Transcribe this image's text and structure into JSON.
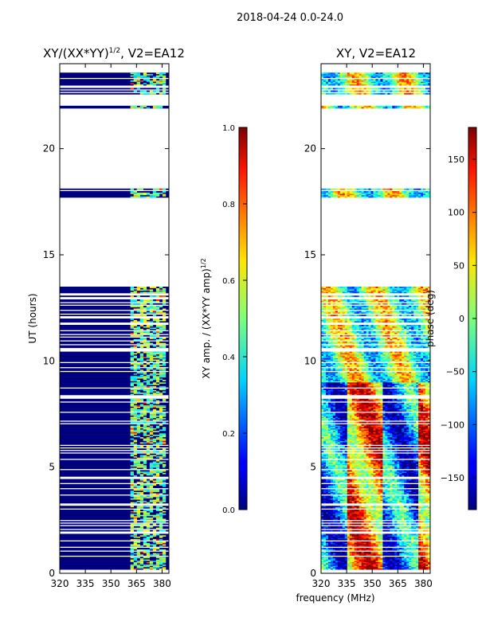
{
  "suptitle": "2018-04-24 0.0-24.0",
  "chart_data": [
    {
      "type": "heatmap",
      "title_main": "XY/(XX*YY)",
      "title_sup": "1/2",
      "title_tail": ", V2=EA12",
      "ylabel": "UT (hours)",
      "xlabel": "",
      "xlim": [
        320,
        384
      ],
      "ylim": [
        0,
        24
      ],
      "xticks": [
        320,
        335,
        350,
        365,
        380
      ],
      "yticks": [
        0,
        5,
        10,
        15,
        20
      ],
      "colorbar": {
        "label": "XY amp. / (XX*YY amp)",
        "label_sup": "1/2",
        "range": [
          0.0,
          1.0
        ],
        "ticks": [
          "0.0",
          "0.2",
          "0.4",
          "0.6",
          "0.8",
          "1.0"
        ],
        "tick_values": [
          0.0,
          0.2,
          0.4,
          0.6,
          0.8,
          1.0
        ]
      },
      "data_present_hours": [
        [
          0.0,
          13.5
        ],
        [
          17.7,
          18.2
        ],
        [
          21.9,
          23.6
        ]
      ]
    },
    {
      "type": "heatmap",
      "title_main": "XY, V2=EA12",
      "xlabel": "frequency (MHz)",
      "ylabel": "",
      "xlim": [
        320,
        384
      ],
      "ylim": [
        0,
        24
      ],
      "xticks": [
        320,
        335,
        350,
        365,
        380
      ],
      "yticks": [
        0,
        5,
        10,
        15,
        20
      ],
      "colorbar": {
        "label": "phase (deg)",
        "range": [
          -180,
          180
        ],
        "ticks": [
          "150",
          "100",
          "50",
          "0",
          "−50",
          "−100",
          "−150"
        ],
        "tick_values": [
          150,
          100,
          50,
          0,
          -50,
          -100,
          -150
        ]
      },
      "data_present_hours": [
        [
          0.0,
          13.5
        ],
        [
          17.7,
          18.2
        ],
        [
          21.9,
          23.6
        ]
      ]
    }
  ]
}
